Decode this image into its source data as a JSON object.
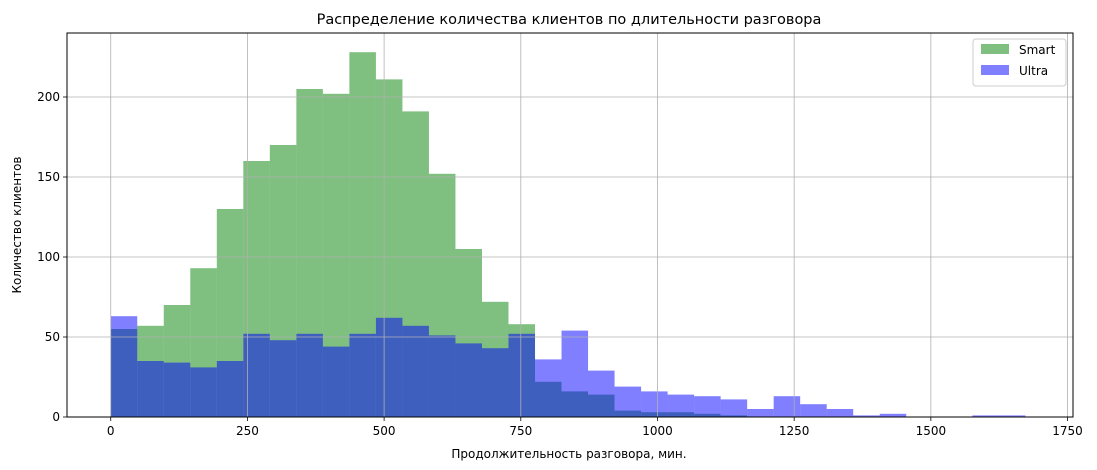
{
  "chart_data": {
    "type": "bar",
    "title": "Распределение количества клиентов по длительности разговора",
    "xlabel": "Продолжительность разговора, мин.",
    "ylabel": "Количество клиентов",
    "xlim": [
      -80,
      1760
    ],
    "ylim": [
      0,
      240
    ],
    "xticks": [
      0,
      250,
      500,
      750,
      1000,
      1250,
      1500,
      1750
    ],
    "yticks": [
      0,
      50,
      100,
      150,
      200
    ],
    "grid": true,
    "legend_position": "top-right",
    "series": [
      {
        "name": "Smart",
        "color": "#008000",
        "alpha": 0.5,
        "bins": [
          [
            0,
            48.5,
            55
          ],
          [
            48.5,
            97,
            57
          ],
          [
            97,
            145.5,
            70
          ],
          [
            145.5,
            194,
            93
          ],
          [
            194,
            242.5,
            130
          ],
          [
            242.5,
            291,
            160
          ],
          [
            291,
            339.5,
            170
          ],
          [
            339.5,
            388,
            205
          ],
          [
            388,
            436.5,
            202
          ],
          [
            436.5,
            485,
            228
          ],
          [
            485,
            533.5,
            211
          ],
          [
            533.5,
            582,
            191
          ],
          [
            582,
            630.5,
            152
          ],
          [
            630.5,
            679,
            105
          ],
          [
            679,
            727.5,
            72
          ],
          [
            727.5,
            776,
            58
          ],
          [
            776,
            824.5,
            22
          ],
          [
            824.5,
            873,
            16
          ],
          [
            873,
            921.5,
            14
          ],
          [
            921.5,
            970,
            4
          ],
          [
            970,
            1018.5,
            3
          ],
          [
            1018.5,
            1067,
            3
          ],
          [
            1067,
            1115.5,
            2
          ],
          [
            1115.5,
            1164,
            1
          ]
        ]
      },
      {
        "name": "Ultra",
        "color": "#0000FF",
        "alpha": 0.5,
        "bins": [
          [
            0,
            48.5,
            63
          ],
          [
            48.5,
            97,
            35
          ],
          [
            97,
            145.5,
            34
          ],
          [
            145.5,
            194,
            31
          ],
          [
            194,
            242.5,
            35
          ],
          [
            242.5,
            291,
            52
          ],
          [
            291,
            339.5,
            48
          ],
          [
            339.5,
            388,
            52
          ],
          [
            388,
            436.5,
            44
          ],
          [
            436.5,
            485,
            52
          ],
          [
            485,
            533.5,
            62
          ],
          [
            533.5,
            582,
            57
          ],
          [
            582,
            630.5,
            51
          ],
          [
            630.5,
            679,
            46
          ],
          [
            679,
            727.5,
            43
          ],
          [
            727.5,
            776,
            52
          ],
          [
            776,
            824.5,
            36
          ],
          [
            824.5,
            873,
            54
          ],
          [
            873,
            921.5,
            29
          ],
          [
            921.5,
            970,
            19
          ],
          [
            970,
            1018.5,
            16
          ],
          [
            1018.5,
            1067,
            14
          ],
          [
            1067,
            1115.5,
            13
          ],
          [
            1115.5,
            1164,
            11
          ],
          [
            1164,
            1212.5,
            5
          ],
          [
            1212.5,
            1261,
            13
          ],
          [
            1261,
            1309.5,
            8
          ],
          [
            1309.5,
            1358,
            5
          ],
          [
            1358,
            1406.5,
            1
          ],
          [
            1406.5,
            1455,
            2
          ],
          [
            1576,
            1673,
            1
          ]
        ]
      }
    ]
  }
}
